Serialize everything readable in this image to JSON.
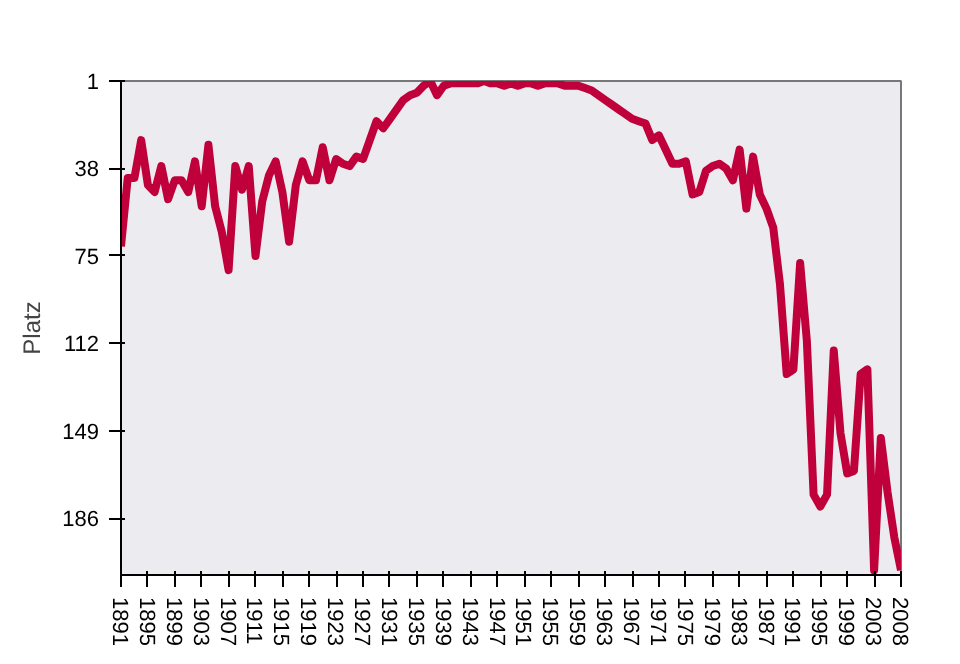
{
  "chart_data": {
    "type": "line",
    "ylabel": "Platz",
    "categories": [
      "1891",
      null,
      null,
      null,
      "1895",
      null,
      null,
      null,
      "1899",
      null,
      null,
      null,
      "1903",
      null,
      null,
      null,
      "1907",
      null,
      null,
      null,
      "1911",
      null,
      null,
      null,
      "1915",
      null,
      null,
      null,
      "1919",
      null,
      null,
      null,
      "1923",
      null,
      null,
      null,
      "1927",
      null,
      null,
      null,
      "1931",
      null,
      null,
      null,
      "1935",
      null,
      null,
      null,
      "1939",
      null,
      null,
      null,
      "1943",
      null,
      null,
      null,
      "1947",
      null,
      null,
      null,
      "1951",
      null,
      null,
      null,
      "1955",
      null,
      null,
      null,
      "1959",
      null,
      null,
      null,
      "1963",
      null,
      null,
      null,
      "1967",
      null,
      null,
      null,
      "1971",
      null,
      null,
      null,
      "1975",
      null,
      null,
      null,
      "1979",
      null,
      null,
      null,
      "1983",
      null,
      null,
      null,
      "1987",
      null,
      null,
      null,
      "1991",
      null,
      null,
      null,
      "1995",
      null,
      null,
      null,
      "1999",
      null,
      null,
      null,
      "2003",
      null,
      null,
      null,
      "2008"
    ],
    "series": [
      {
        "color": "#c0003a",
        "values": [
          71,
          42,
          42,
          26,
          45,
          48,
          37,
          51,
          43,
          43,
          48,
          35,
          54,
          28,
          54,
          65,
          81,
          37,
          47,
          37,
          75,
          52,
          41,
          35,
          48,
          69,
          45,
          35,
          43,
          43,
          29,
          43,
          34,
          36,
          37,
          33,
          34,
          26,
          18,
          21,
          17,
          13,
          9,
          7,
          6,
          3,
          1,
          7,
          3,
          2,
          2,
          2,
          2,
          2,
          1,
          2,
          2,
          3,
          2,
          3,
          2,
          2,
          3,
          2,
          2,
          2,
          3,
          3,
          3,
          4,
          5,
          7,
          9,
          11,
          13,
          15,
          17,
          18,
          19,
          26,
          24,
          30,
          36,
          36,
          35,
          49,
          48,
          39,
          37,
          36,
          38,
          43,
          30,
          55,
          33,
          49,
          55,
          63,
          87,
          125,
          123,
          78,
          111,
          176,
          181,
          176,
          115,
          150,
          167,
          166,
          125,
          123,
          208,
          152,
          175,
          194,
          208
        ]
      }
    ],
    "ylim": [
      210,
      1
    ],
    "yticks": [
      1,
      38,
      75,
      112,
      149,
      186
    ]
  }
}
